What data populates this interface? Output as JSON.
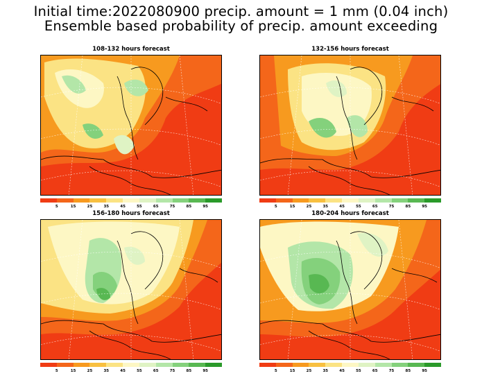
{
  "title_line1": "Initial time:2022080900 precip. amount = 1 mm (0.04 inch)",
  "title_line2": "Ensemble based probability of precip. amount exceeding",
  "panels": [
    {
      "title": "108-132 hours forecast"
    },
    {
      "title": "132-156 hours forecast"
    },
    {
      "title": "156-180 hours forecast"
    },
    {
      "title": "180-204 hours forecast"
    }
  ],
  "colorbar": {
    "colors": [
      "#f03c14",
      "#f4661a",
      "#f79a1f",
      "#f8c040",
      "#fbe384",
      "#fdf7c4",
      "#dff3c4",
      "#b3e6a8",
      "#84d17c",
      "#58b852",
      "#2a9a2a"
    ],
    "labels": [
      "5",
      "15",
      "25",
      "35",
      "45",
      "55",
      "65",
      "75",
      "85",
      "95"
    ]
  }
}
